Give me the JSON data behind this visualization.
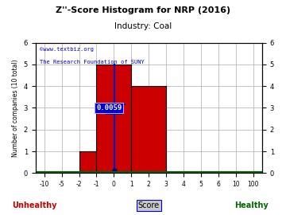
{
  "title": "Z''-Score Histogram for NRP (2016)",
  "subtitle": "Industry: Coal",
  "watermark_line1": "©www.textbiz.org",
  "watermark_line2": "The Research Foundation of SUNY",
  "ylabel": "Number of companies (10 total)",
  "xlabel_center": "Score",
  "xlabel_left": "Unhealthy",
  "xlabel_right": "Healthy",
  "bars": [
    {
      "x_left_val": -2,
      "x_right_val": -1,
      "height": 1
    },
    {
      "x_left_val": -1,
      "x_right_val": 1,
      "height": 5
    },
    {
      "x_left_val": 1,
      "x_right_val": 3,
      "height": 4
    }
  ],
  "bar_color": "#cc0000",
  "bar_edge_color": "#000000",
  "nrp_score": 0.0059,
  "nrp_score_label": "0.0059",
  "nrp_line_color": "#0000cc",
  "nrp_dot_color": "#00008b",
  "nrp_annotation_box_color": "#0000cc",
  "nrp_annotation_text_color": "#ffffff",
  "nrp_crosshair_y": 3.0,
  "xtick_values": [
    -10,
    -5,
    -2,
    -1,
    0,
    1,
    2,
    3,
    4,
    5,
    6,
    10,
    100
  ],
  "yticks": [
    0,
    1,
    2,
    3,
    4,
    5,
    6
  ],
  "ylim_top": 6,
  "bg_color": "#ffffff",
  "grid_color": "#aaaaaa",
  "title_color": "#000000",
  "subtitle_color": "#000000",
  "bottom_bar_color": "#006600",
  "unhealthy_color": "#cc0000",
  "healthy_color": "#006600",
  "score_label_color": "#000000",
  "score_label_bg": "#c8c8c8"
}
